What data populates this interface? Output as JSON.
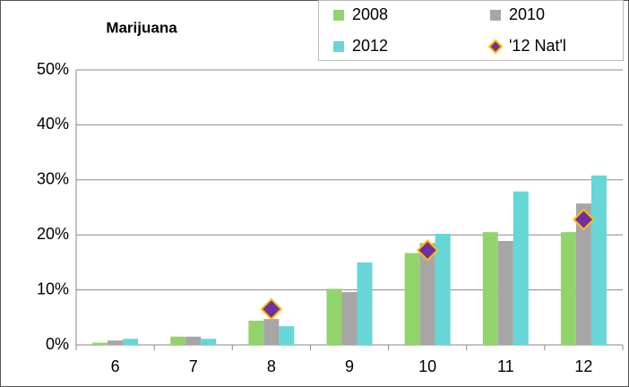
{
  "chart_data": {
    "type": "bar",
    "title": "Marijuana",
    "categories": [
      "6",
      "7",
      "8",
      "9",
      "10",
      "11",
      "12"
    ],
    "series": [
      {
        "name": "2008",
        "color": "#92d46c",
        "values": [
          0.4,
          1.5,
          4.4,
          10.2,
          16.7,
          20.5,
          20.5
        ]
      },
      {
        "name": "2010",
        "color": "#a6a6a6",
        "values": [
          0.8,
          1.5,
          4.7,
          9.6,
          18.5,
          18.9,
          25.7
        ]
      },
      {
        "name": "2012",
        "color": "#66d6d6",
        "values": [
          1.1,
          1.1,
          3.4,
          15.0,
          20.2,
          27.9,
          30.8
        ]
      },
      {
        "name": "'12 Nat'l",
        "type": "scatter",
        "color": "#7030a0",
        "edgecolor": "#ffc000",
        "values": [
          null,
          null,
          6.5,
          null,
          17.2,
          null,
          22.8
        ]
      }
    ],
    "ylim": [
      0,
      50
    ],
    "yticks": [
      {
        "value": 0,
        "label": "0%"
      },
      {
        "value": 10,
        "label": "10%"
      },
      {
        "value": 20,
        "label": "20%"
      },
      {
        "value": 30,
        "label": "30%"
      },
      {
        "value": 40,
        "label": "40%"
      },
      {
        "value": 50,
        "label": "50%"
      }
    ],
    "grid": true
  }
}
